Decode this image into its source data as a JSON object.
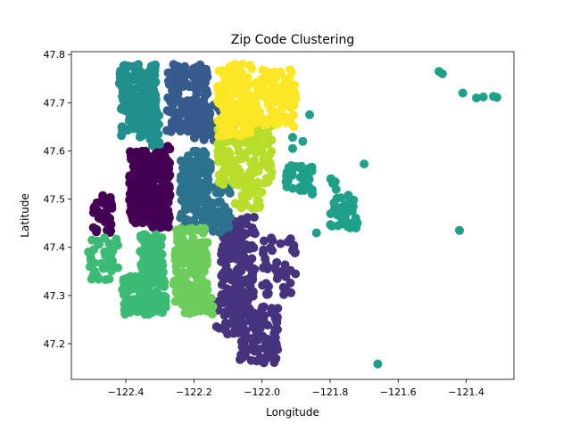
{
  "chart_data": {
    "type": "scatter",
    "title": "Zip Code Clustering",
    "xlabel": "Longitude",
    "ylabel": "Latitude",
    "xlim": [
      -122.56,
      -121.26
    ],
    "ylim": [
      47.126,
      47.806
    ],
    "xticks": [
      -122.4,
      -122.2,
      -122.0,
      -121.8,
      -121.6,
      -121.4
    ],
    "xtick_labels": [
      "−122.4",
      "−122.2",
      "−122.0",
      "−121.8",
      "−121.6",
      "−121.4"
    ],
    "yticks": [
      47.2,
      47.3,
      47.4,
      47.5,
      47.6,
      47.7,
      47.8
    ],
    "ytick_labels": [
      "47.2",
      "47.3",
      "47.4",
      "47.5",
      "47.6",
      "47.7",
      "47.8"
    ],
    "grid": false,
    "legend": "none",
    "marker_size_px": 5,
    "clusters": [
      {
        "color": "#440154",
        "blobs": [
          {
            "x": [
              -122.39,
              -122.33
            ],
            "y": [
              47.45,
              47.6
            ],
            "n": 160
          },
          {
            "x": [
              -122.33,
              -122.27
            ],
            "y": [
              47.44,
              47.61
            ],
            "n": 150
          },
          {
            "x": [
              -122.5,
              -122.44
            ],
            "y": [
              47.43,
              47.51
            ],
            "n": 40
          }
        ]
      },
      {
        "color": "#46337e",
        "blobs": [
          {
            "x": [
              -122.12,
              -122.02
            ],
            "y": [
              47.28,
              47.47
            ],
            "n": 160
          },
          {
            "x": [
              -122.07,
              -121.95
            ],
            "y": [
              47.16,
              47.28
            ],
            "n": 110
          },
          {
            "x": [
              -122.0,
              -121.9
            ],
            "y": [
              47.3,
              47.42
            ],
            "n": 45
          },
          {
            "x": [
              -122.14,
              -122.06
            ],
            "y": [
              47.22,
              47.3
            ],
            "n": 30
          }
        ]
      },
      {
        "color": "#365c8d",
        "blobs": [
          {
            "x": [
              -122.28,
              -122.16
            ],
            "y": [
              47.64,
              47.78
            ],
            "n": 170
          },
          {
            "x": [
              -122.2,
              -122.12
            ],
            "y": [
              47.62,
              47.7
            ],
            "n": 40
          }
        ]
      },
      {
        "color": "#2c728e",
        "blobs": [
          {
            "x": [
              -122.24,
              -122.15
            ],
            "y": [
              47.44,
              47.6
            ],
            "n": 160
          },
          {
            "x": [
              -122.17,
              -122.09
            ],
            "y": [
              47.43,
              47.53
            ],
            "n": 60
          }
        ]
      },
      {
        "color": "#21908d",
        "blobs": [
          {
            "x": [
              -122.42,
              -122.31
            ],
            "y": [
              47.63,
              47.78
            ],
            "n": 180
          },
          {
            "x": [
              -122.36,
              -122.3
            ],
            "y": [
              47.61,
              47.68
            ],
            "n": 40
          }
        ]
      },
      {
        "color": "#1fa088",
        "blobs": [
          {
            "x": [
              -121.93,
              -121.85
            ],
            "y": [
              47.51,
              47.57
            ],
            "n": 40
          },
          {
            "x": [
              -121.8,
              -121.72
            ],
            "y": [
              47.44,
              47.51
            ],
            "n": 45
          },
          {
            "x": [
              -121.8,
              -121.77
            ],
            "y": [
              47.52,
              47.55
            ],
            "n": 5
          }
        ],
        "points": [
          [
            -121.48,
            47.765
          ],
          [
            -121.47,
            47.76
          ],
          [
            -121.41,
            47.72
          ],
          [
            -121.37,
            47.71
          ],
          [
            -121.35,
            47.712
          ],
          [
            -121.32,
            47.713
          ],
          [
            -121.31,
            47.711
          ],
          [
            -121.42,
            47.435
          ],
          [
            -121.66,
            47.158
          ],
          [
            -121.7,
            47.573
          ],
          [
            -121.84,
            47.43
          ],
          [
            -121.88,
            47.62
          ],
          [
            -121.91,
            47.628
          ],
          [
            -121.91,
            47.605
          ],
          [
            -121.86,
            47.675
          ]
        ]
      },
      {
        "color": "#3bbb75",
        "blobs": [
          {
            "x": [
              -122.41,
              -122.28
            ],
            "y": [
              47.26,
              47.34
            ],
            "n": 120
          },
          {
            "x": [
              -122.36,
              -122.29
            ],
            "y": [
              47.33,
              47.43
            ],
            "n": 80
          },
          {
            "x": [
              -122.51,
              -122.42
            ],
            "y": [
              47.33,
              47.42
            ],
            "n": 45
          }
        ]
      },
      {
        "color": "#6ccd5a",
        "blobs": [
          {
            "x": [
              -122.26,
              -122.16
            ],
            "y": [
              47.28,
              47.44
            ],
            "n": 150
          },
          {
            "x": [
              -122.23,
              -122.14
            ],
            "y": [
              47.26,
              47.3
            ],
            "n": 30
          }
        ]
      },
      {
        "color": "#b7de2a",
        "blobs": [
          {
            "x": [
              -122.13,
              -121.97
            ],
            "y": [
              47.53,
              47.66
            ],
            "n": 160
          },
          {
            "x": [
              -122.08,
              -122.0
            ],
            "y": [
              47.48,
              47.54
            ],
            "n": 30
          }
        ]
      },
      {
        "color": "#fde725",
        "blobs": [
          {
            "x": [
              -122.13,
              -122.03
            ],
            "y": [
              47.63,
              47.78
            ],
            "n": 160
          },
          {
            "x": [
              -122.03,
              -121.9
            ],
            "y": [
              47.65,
              47.77
            ],
            "n": 100
          }
        ]
      }
    ]
  }
}
